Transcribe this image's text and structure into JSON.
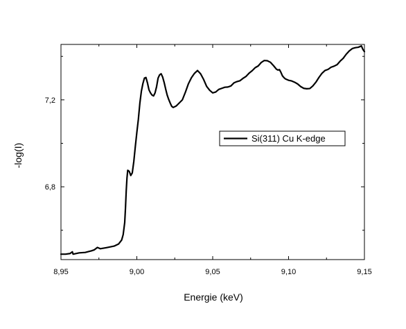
{
  "chart_data": {
    "type": "line",
    "xlabel": "Energie (keV)",
    "ylabel": "-log(I)",
    "xlim": [
      8.95,
      9.15
    ],
    "ylim": [
      6.465,
      7.455
    ],
    "x_ticks": [
      8.95,
      9.0,
      9.05,
      9.1,
      9.15
    ],
    "x_tick_labels": [
      "8,95",
      "9,00",
      "9,05",
      "9,10",
      "9,15"
    ],
    "y_ticks": [
      6.8,
      7.2
    ],
    "y_tick_labels": [
      "6,8",
      "7,2"
    ],
    "legend": {
      "placement": "right"
    },
    "series": [
      {
        "name": "Si(311) Cu K-edge",
        "color": "#000000",
        "x": [
          8.95,
          8.953,
          8.956,
          8.9575,
          8.958,
          8.962,
          8.966,
          8.97,
          8.972,
          8.974,
          8.976,
          8.98,
          8.985,
          8.988,
          8.99,
          8.991,
          8.992,
          8.9925,
          8.993,
          8.9935,
          8.994,
          8.995,
          8.996,
          8.997,
          8.998,
          8.999,
          9.0,
          9.001,
          9.002,
          9.003,
          9.004,
          9.005,
          9.006,
          9.007,
          9.008,
          9.009,
          9.01,
          9.011,
          9.012,
          9.013,
          9.014,
          9.015,
          9.016,
          9.017,
          9.018,
          9.019,
          9.02,
          9.021,
          9.022,
          9.023,
          9.024,
          9.026,
          9.028,
          9.03,
          9.032,
          9.034,
          9.036,
          9.038,
          9.04,
          9.042,
          9.044,
          9.046,
          9.048,
          9.05,
          9.052,
          9.054,
          9.056,
          9.058,
          9.06,
          9.062,
          9.064,
          9.066,
          9.068,
          9.07,
          9.072,
          9.074,
          9.076,
          9.078,
          9.08,
          9.082,
          9.084,
          9.086,
          9.088,
          9.09,
          9.092,
          9.093,
          9.094,
          9.095,
          9.096,
          9.097,
          9.098,
          9.1,
          9.102,
          9.104,
          9.106,
          9.108,
          9.11,
          9.112,
          9.114,
          9.116,
          9.118,
          9.12,
          9.122,
          9.124,
          9.126,
          9.128,
          9.13,
          9.132,
          9.134,
          9.136,
          9.138,
          9.14,
          9.142,
          9.144,
          9.146,
          9.148,
          9.149,
          9.15
        ],
        "y": [
          6.49,
          6.49,
          6.493,
          6.501,
          6.49,
          6.496,
          6.498,
          6.505,
          6.51,
          6.521,
          6.515,
          6.52,
          6.527,
          6.537,
          6.555,
          6.58,
          6.635,
          6.7,
          6.78,
          6.84,
          6.876,
          6.871,
          6.852,
          6.864,
          6.916,
          6.985,
          7.05,
          7.11,
          7.185,
          7.24,
          7.275,
          7.3,
          7.303,
          7.278,
          7.246,
          7.232,
          7.222,
          7.218,
          7.232,
          7.26,
          7.3,
          7.315,
          7.32,
          7.305,
          7.28,
          7.25,
          7.222,
          7.202,
          7.185,
          7.17,
          7.165,
          7.172,
          7.186,
          7.2,
          7.235,
          7.274,
          7.302,
          7.322,
          7.335,
          7.32,
          7.294,
          7.262,
          7.244,
          7.232,
          7.236,
          7.248,
          7.253,
          7.258,
          7.259,
          7.264,
          7.278,
          7.284,
          7.288,
          7.299,
          7.308,
          7.323,
          7.334,
          7.348,
          7.356,
          7.372,
          7.381,
          7.38,
          7.373,
          7.358,
          7.341,
          7.337,
          7.339,
          7.326,
          7.31,
          7.302,
          7.296,
          7.29,
          7.287,
          7.281,
          7.273,
          7.261,
          7.253,
          7.251,
          7.252,
          7.264,
          7.281,
          7.303,
          7.322,
          7.335,
          7.34,
          7.35,
          7.355,
          7.362,
          7.378,
          7.391,
          7.41,
          7.425,
          7.436,
          7.44,
          7.442,
          7.448,
          7.432,
          7.422
        ]
      }
    ]
  }
}
